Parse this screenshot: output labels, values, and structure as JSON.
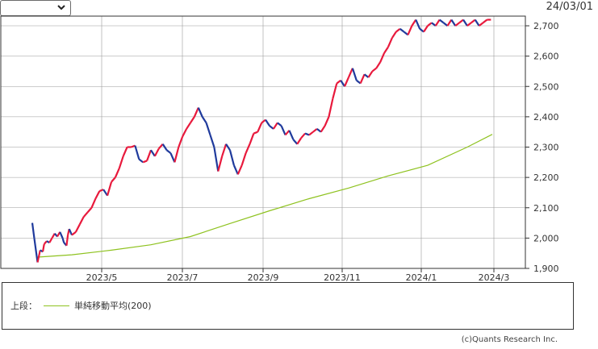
{
  "header": {
    "date": "24/03/01"
  },
  "colors": {
    "up": "#e8193c",
    "down": "#1f3a9c",
    "ma": "#8ec21f",
    "grid": "#9a9a9a",
    "frame": "#333333"
  },
  "legend": {
    "section_label": "上段：",
    "ma_label": "単純移動平均(200)"
  },
  "credit": "(c)Quants Research Inc.",
  "chart_data": {
    "type": "line",
    "x_tick_labels": [
      "2023/5",
      "2023/7",
      "2023/9",
      "2023/11",
      "2024/1",
      "2024/3"
    ],
    "y_tick_labels": [
      "2,700",
      "2,600",
      "2,500",
      "2,400",
      "2,300",
      "2,200",
      "2,100",
      "2,000",
      "1,900"
    ],
    "ylim": [
      1900,
      2700
    ],
    "series": [
      {
        "name": "",
        "t": [
          0,
          1.5,
          4,
          6,
          8,
          9,
          11,
          13,
          15,
          17,
          19,
          21,
          23,
          24,
          26,
          27,
          28,
          30,
          33,
          36,
          39,
          42,
          45,
          48,
          51,
          54,
          57,
          60,
          63,
          66,
          69,
          72,
          75,
          78,
          81,
          84,
          87,
          90,
          93,
          96,
          99,
          102,
          105,
          108,
          111,
          114,
          117,
          120,
          123,
          126,
          129,
          132,
          135,
          138,
          141,
          144,
          147,
          150,
          153,
          156,
          159,
          162,
          165,
          168,
          171,
          174,
          177,
          180,
          183,
          186,
          189,
          192,
          195,
          198,
          201,
          204,
          207,
          210,
          213,
          216,
          219,
          222,
          225,
          228,
          231,
          234,
          237,
          240,
          243,
          246,
          249,
          252,
          255,
          258,
          261,
          264,
          267,
          270,
          273,
          276,
          279,
          282,
          285,
          288,
          291,
          294,
          297,
          300,
          303,
          306,
          309,
          312,
          315,
          318,
          321,
          324,
          327,
          330,
          333,
          336,
          339,
          342,
          345,
          348
        ],
        "price": [
          2050,
          2000,
          1920,
          1960,
          1955,
          1980,
          1990,
          1985,
          2000,
          2015,
          2005,
          2020,
          2000,
          1985,
          1975,
          2010,
          2030,
          2010,
          2020,
          2045,
          2070,
          2085,
          2100,
          2130,
          2155,
          2160,
          2140,
          2185,
          2200,
          2230,
          2270,
          2300,
          2300,
          2305,
          2260,
          2250,
          2255,
          2290,
          2270,
          2295,
          2310,
          2290,
          2280,
          2250,
          2300,
          2335,
          2360,
          2380,
          2400,
          2430,
          2400,
          2380,
          2340,
          2300,
          2220,
          2270,
          2310,
          2290,
          2240,
          2210,
          2240,
          2280,
          2310,
          2345,
          2350,
          2380,
          2390,
          2370,
          2360,
          2380,
          2370,
          2340,
          2355,
          2325,
          2310,
          2330,
          2345,
          2340,
          2350,
          2360,
          2350,
          2370,
          2400,
          2460,
          2510,
          2520,
          2500,
          2530,
          2560,
          2520,
          2510,
          2540,
          2530,
          2550,
          2560,
          2580,
          2610,
          2630,
          2660,
          2680,
          2690,
          2680,
          2670,
          2700,
          2720,
          2690,
          2680,
          2700,
          2710,
          2700,
          2720,
          2710,
          2700,
          2720,
          2700,
          2710,
          2720,
          2700,
          2710,
          2720,
          2700,
          2710,
          2720,
          2720
        ],
        "ma_t": [
          3,
          30,
          60,
          90,
          120,
          150,
          180,
          210,
          240,
          270,
          300,
          330,
          349
        ],
        "ma": [
          1937,
          1945,
          1960,
          1978,
          2005,
          2048,
          2090,
          2130,
          2165,
          2205,
          2240,
          2300,
          2342
        ]
      }
    ]
  }
}
